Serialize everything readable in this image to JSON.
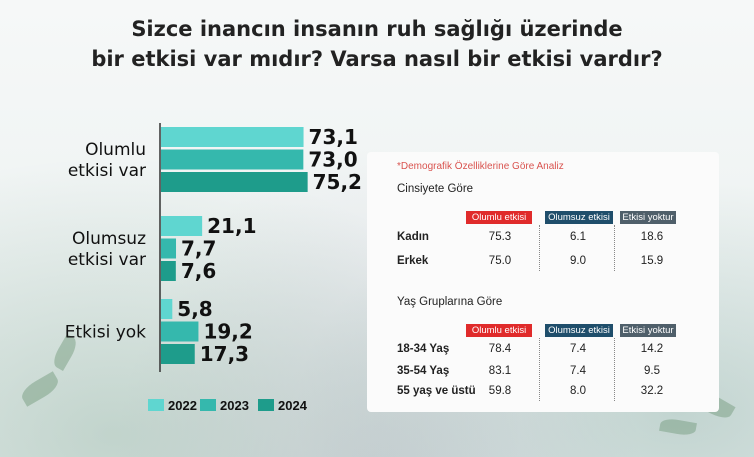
{
  "title_lines": [
    "Sizce inancın insanın ruh sağlığı üzerinde",
    "bir etkisi var mıdır? Varsa nasıl bir etkisi vardır?"
  ],
  "chart_data": {
    "type": "bar",
    "orientation": "horizontal",
    "title": "Sizce inancın insanın ruh sağlığı üzerinde bir etkisi var mıdır? Varsa nasıl bir etkisi vardır?",
    "categories": [
      [
        "Olumlu",
        "etkisi var"
      ],
      [
        "Olumsuz",
        "etkisi var"
      ],
      [
        "Etkisi yok"
      ]
    ],
    "series": [
      {
        "name": "2022",
        "color": "#5fd6d0",
        "values": [
          "73,1",
          "21,1",
          "5,8"
        ]
      },
      {
        "name": "2023",
        "color": "#35b8ad",
        "values": [
          "73,0",
          "7,7",
          "19,2"
        ]
      },
      {
        "name": "2024",
        "color": "#1e9c8b",
        "values": [
          "75,2",
          "7,6",
          "17,3"
        ]
      }
    ],
    "xlim": [
      0,
      100
    ],
    "legend_position": "bottom",
    "grid": false
  },
  "table": {
    "note": "*Demografik Özelliklerine Göre Analiz",
    "columns": [
      {
        "label": "Olumlu etkisi var",
        "color": "#e02b2b"
      },
      {
        "label": "Olumsuz etkisi var",
        "color": "#1f4e6b"
      },
      {
        "label": "Etkisi yoktur",
        "color": "#4f5f6a"
      }
    ],
    "sections": [
      {
        "title": "Cinsiyete Göre",
        "rows": [
          {
            "label": "Kadın",
            "values": [
              "75.3",
              "6.1",
              "18.6"
            ]
          },
          {
            "label": "Erkek",
            "values": [
              "75.0",
              "9.0",
              "15.9"
            ]
          }
        ]
      },
      {
        "title": "Yaş Gruplarına Göre",
        "rows": [
          {
            "label": "18-34 Yaş",
            "values": [
              "78.4",
              "7.4",
              "14.2"
            ]
          },
          {
            "label": "35-54 Yaş",
            "values": [
              "83.1",
              "7.4",
              "9.5"
            ]
          },
          {
            "label": "55 yaş ve üstü",
            "values": [
              "59.8",
              "8.0",
              "32.2"
            ]
          }
        ]
      }
    ]
  }
}
